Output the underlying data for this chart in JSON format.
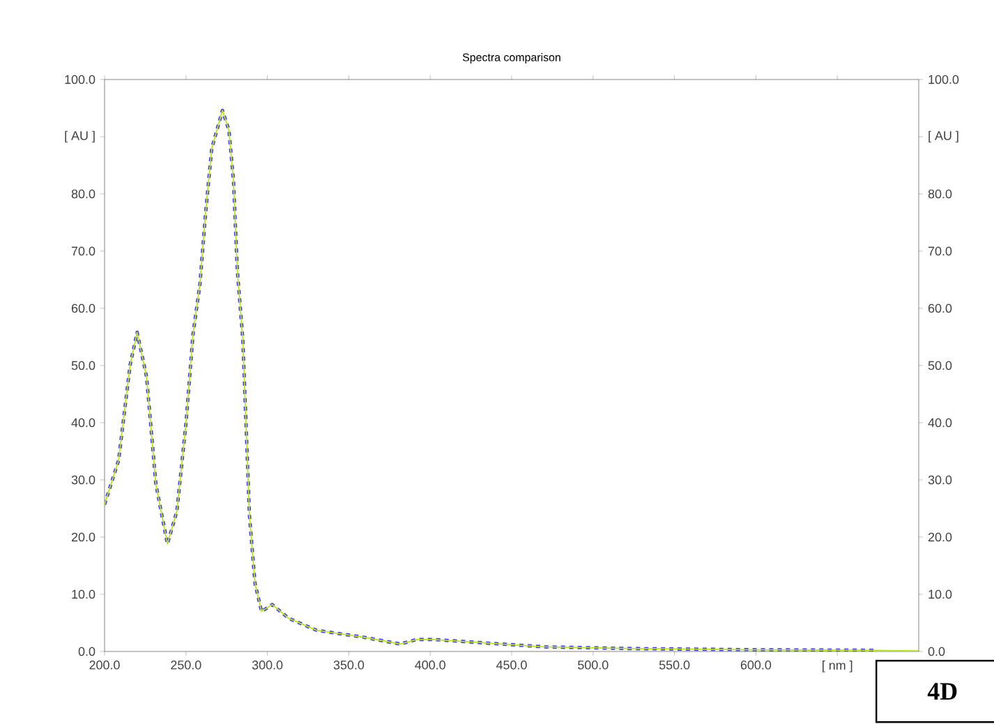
{
  "chart_data": {
    "type": "line",
    "title": "Spectra comparison",
    "xlim": [
      200,
      700
    ],
    "xticks": [
      {
        "value": 200,
        "label": "200.0"
      },
      {
        "value": 250,
        "label": "250.0"
      },
      {
        "value": 300,
        "label": "300.0"
      },
      {
        "value": 350,
        "label": "350.0"
      },
      {
        "value": 400,
        "label": "400.0"
      },
      {
        "value": 450,
        "label": "450.0"
      },
      {
        "value": 500,
        "label": "500.0"
      },
      {
        "value": 550,
        "label": "550.0"
      },
      {
        "value": 600,
        "label": "600.0"
      },
      {
        "value": 650,
        "label": "[ nm ]"
      }
    ],
    "ylim": [
      0,
      100
    ],
    "yticks": [
      {
        "value": 0,
        "label": "0.0"
      },
      {
        "value": 10,
        "label": "10.0"
      },
      {
        "value": 20,
        "label": "20.0"
      },
      {
        "value": 30,
        "label": "30.0"
      },
      {
        "value": 40,
        "label": "40.0"
      },
      {
        "value": 50,
        "label": "50.0"
      },
      {
        "value": 60,
        "label": "60.0"
      },
      {
        "value": 70,
        "label": "70.0"
      },
      {
        "value": 80,
        "label": "80.0"
      },
      {
        "value": 90,
        "label": "[ AU ]"
      },
      {
        "value": 100,
        "label": "100.0"
      }
    ],
    "y2lim": [
      0,
      100
    ],
    "y2ticks": [
      {
        "value": 0,
        "label": "0.0"
      },
      {
        "value": 10,
        "label": "10.0"
      },
      {
        "value": 20,
        "label": "20.0"
      },
      {
        "value": 30,
        "label": "30.0"
      },
      {
        "value": 40,
        "label": "40.0"
      },
      {
        "value": 50,
        "label": "50.0"
      },
      {
        "value": 60,
        "label": "60.0"
      },
      {
        "value": 70,
        "label": "70.0"
      },
      {
        "value": 80,
        "label": "80.0"
      },
      {
        "value": 90,
        "label": "[ AU ]"
      },
      {
        "value": 100,
        "label": "100.0"
      }
    ],
    "grid": false,
    "annotations": [
      "4D"
    ],
    "series": [
      {
        "color": "#4b3cf0",
        "line_style": "dashed",
        "x": [
          200,
          208.6,
          215.7,
          220,
          225.8,
          231.5,
          238.6,
          244.4,
          250,
          254.3,
          258.6,
          262,
          265.8,
          272.4,
          276.4,
          279.2,
          281.5,
          284.9,
          286.7,
          289,
          292.4,
          296.4,
          303,
          313,
          330.2,
          358.8,
          381.7,
          391.7,
          401.7,
          433,
          470.4,
          524.7,
          600,
          673
        ],
        "values": [
          25.7,
          33.4,
          50.1,
          55.8,
          48,
          29.3,
          18.8,
          24.5,
          39.9,
          55.4,
          64.3,
          76.5,
          87.9,
          94.6,
          91.1,
          82.2,
          66.8,
          54.6,
          41.1,
          23.7,
          11.9,
          7,
          8.2,
          5.8,
          3.7,
          2.5,
          1.3,
          2.1,
          2.1,
          1.5,
          0.8,
          0.5,
          0.3,
          0.2
        ]
      },
      {
        "color": "#b5e61d",
        "line_style": "solid",
        "x": [
          200,
          208.6,
          215.7,
          220,
          225.8,
          231.5,
          238.6,
          244.4,
          250,
          254.3,
          258.6,
          262,
          265.8,
          272.4,
          276.4,
          279.2,
          281.5,
          284.9,
          286.7,
          289,
          292.4,
          296.4,
          303,
          313,
          330.2,
          358.8,
          381.7,
          391.7,
          401.7,
          433,
          470.4,
          524.7,
          600,
          673,
          700
        ],
        "values": [
          25.7,
          33.4,
          50.1,
          55.8,
          48,
          29.3,
          18.8,
          24.5,
          39.9,
          55.4,
          64.3,
          76.5,
          87.9,
          94.6,
          91.1,
          82.2,
          66.8,
          54.6,
          41.1,
          23.7,
          11.9,
          7,
          8.2,
          5.8,
          3.7,
          2.5,
          1.3,
          2.1,
          2.1,
          1.5,
          0.8,
          0.5,
          0.3,
          0.2,
          0.1
        ]
      }
    ]
  }
}
